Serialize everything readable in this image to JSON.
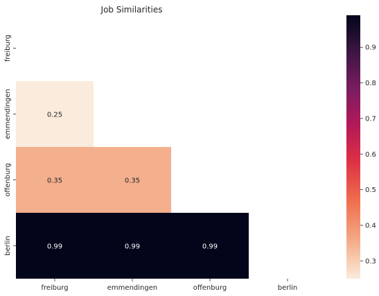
{
  "chart_data": {
    "type": "heatmap",
    "title": "Job Similarities",
    "xlabel": "",
    "ylabel": "",
    "x_categories": [
      "freiburg",
      "emmendingen",
      "offenburg",
      "berlin"
    ],
    "y_categories": [
      "freiburg",
      "emmendingen",
      "offenburg",
      "berlin"
    ],
    "mask": "upper-triangle-including-diagonal",
    "cells": [
      {
        "row": "emmendingen",
        "col": "freiburg",
        "value": 0.25,
        "label": "0.25"
      },
      {
        "row": "offenburg",
        "col": "freiburg",
        "value": 0.35,
        "label": "0.35"
      },
      {
        "row": "offenburg",
        "col": "emmendingen",
        "value": 0.35,
        "label": "0.35"
      },
      {
        "row": "berlin",
        "col": "freiburg",
        "value": 0.99,
        "label": "0.99"
      },
      {
        "row": "berlin",
        "col": "emmendingen",
        "value": 0.99,
        "label": "0.99"
      },
      {
        "row": "berlin",
        "col": "offenburg",
        "value": 0.99,
        "label": "0.99"
      }
    ],
    "colorbar": {
      "colormap": "rocket_r",
      "range": [
        0.25,
        0.99
      ],
      "ticks": [
        0.3,
        0.4,
        0.5,
        0.6,
        0.7,
        0.8,
        0.9
      ],
      "tick_labels": [
        "0.3",
        "0.4",
        "0.5",
        "0.6",
        "0.7",
        "0.8",
        "0.9"
      ]
    },
    "colors": {
      "cell_0.25": "#fae7dc",
      "cell_0.35": "#f5ba98",
      "cell_0.99": "#03051a",
      "annotation_dark_text": "#262626",
      "annotation_light_text": "#ffffff"
    }
  }
}
